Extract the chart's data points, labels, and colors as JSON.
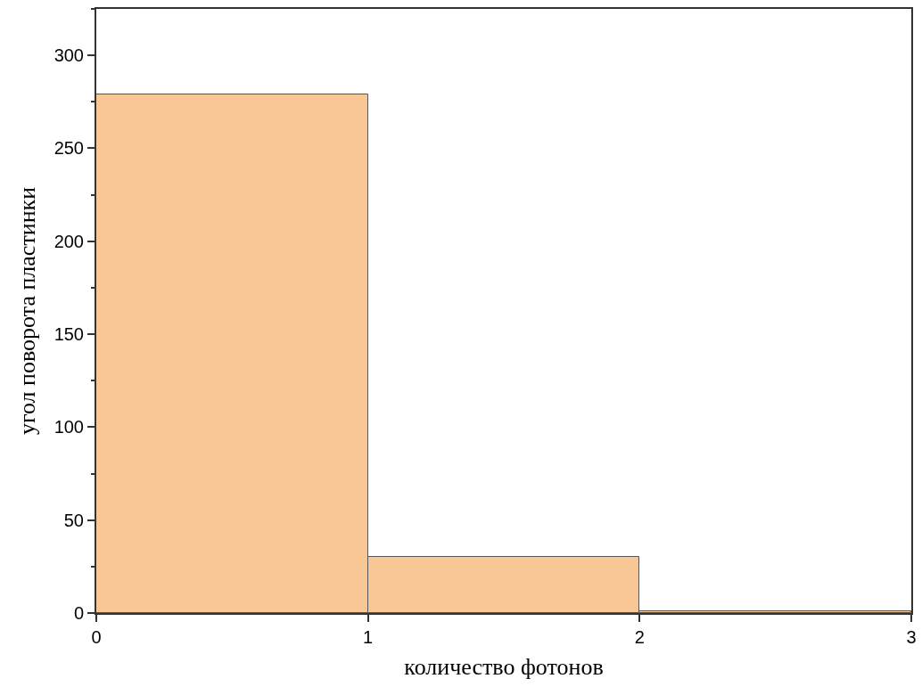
{
  "chart_data": {
    "type": "histogram",
    "xlabel": "количество фотонов",
    "ylabel": "угол поворота пластинки",
    "bins": [
      0,
      1,
      2,
      3
    ],
    "values": [
      279,
      30,
      1
    ],
    "color": "#f9c796",
    "xlim": [
      0,
      3
    ],
    "xticks": [
      0,
      1,
      2,
      3
    ],
    "ylim": [
      0,
      325
    ],
    "yticks": [
      0,
      50,
      100,
      150,
      200,
      250,
      300
    ],
    "grid": false
  }
}
